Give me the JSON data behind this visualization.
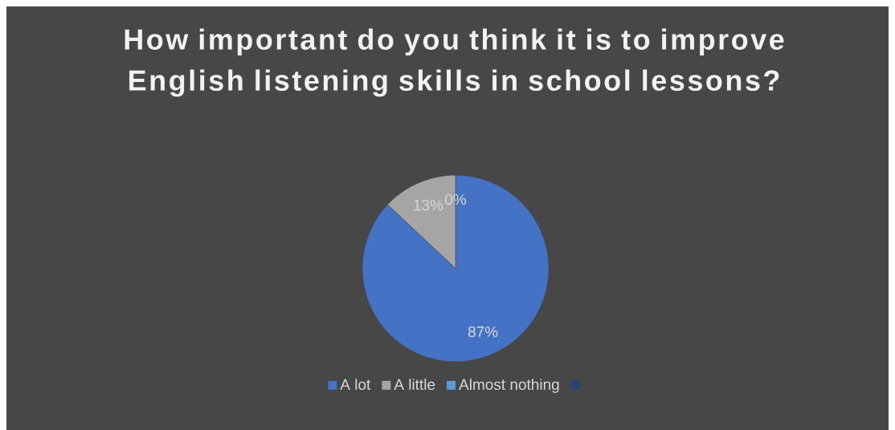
{
  "chart_data": {
    "type": "pie",
    "title": "How important do you think it is to improve English listening skills in school lessons?",
    "categories": [
      "A lot",
      "A little",
      "Almost nothing",
      null
    ],
    "values": [
      87,
      13,
      0,
      null
    ],
    "colors": [
      "#4472c4",
      "#a5a5a5",
      "#5b9bd5",
      "#264478"
    ],
    "value_labels": [
      "87%",
      "13%",
      "0%",
      null
    ],
    "legend": "bottom"
  }
}
